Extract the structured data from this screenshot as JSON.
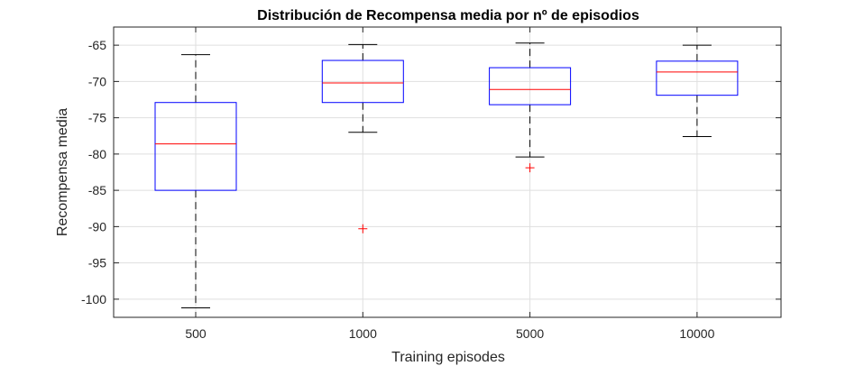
{
  "chart_data": {
    "type": "boxplot",
    "title": "Distribución de Recompensa media por nº de episodios",
    "xlabel": "Training episodes",
    "ylabel": "Recompensa media",
    "categories": [
      "500",
      "1000",
      "5000",
      "10000"
    ],
    "ylim": [
      -102.5,
      -62.5
    ],
    "yticks": [
      -100,
      -95,
      -90,
      -85,
      -80,
      -75,
      -70,
      -65
    ],
    "ytick_labels": [
      "-100",
      "-95",
      "-90",
      "-85",
      "-80",
      "-75",
      "-70",
      "-65"
    ],
    "grid": true,
    "boxes": [
      {
        "category": "500",
        "whisker_low": -101.2,
        "q1": -85.0,
        "median": -78.6,
        "q3": -72.9,
        "whisker_high": -66.3,
        "outliers": []
      },
      {
        "category": "1000",
        "whisker_low": -77.0,
        "q1": -72.9,
        "median": -70.2,
        "q3": -67.1,
        "whisker_high": -64.9,
        "outliers": [
          -90.3
        ]
      },
      {
        "category": "5000",
        "whisker_low": -80.4,
        "q1": -73.2,
        "median": -71.1,
        "q3": -68.1,
        "whisker_high": -64.7,
        "outliers": [
          -81.9
        ]
      },
      {
        "category": "10000",
        "whisker_low": -77.6,
        "q1": -71.9,
        "median": -68.7,
        "q3": -67.2,
        "whisker_high": -65.0,
        "outliers": []
      }
    ],
    "colors": {
      "box": "#0000ff",
      "median": "#ff0000",
      "whisker": "#000000",
      "outlier": "#ff0000",
      "grid": "#dfdfdf",
      "axis": "#262626"
    }
  }
}
